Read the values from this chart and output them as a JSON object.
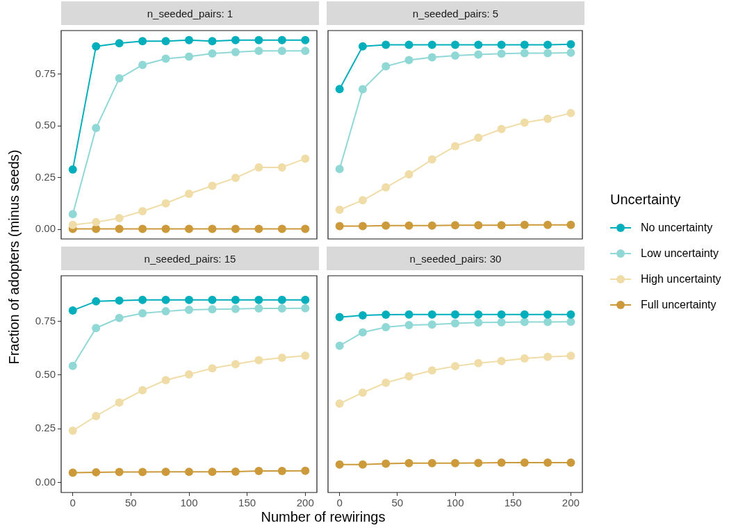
{
  "chart_data": [
    {
      "type": "line",
      "title": "n_seeded_pairs: 1",
      "ylabel": "Fraction of adopters (minus seeds)",
      "legend_title": "Uncertainty",
      "legend": "right",
      "marker": "circle",
      "tick_labels": "y",
      "x": [
        0,
        20,
        40,
        60,
        80,
        100,
        120,
        140,
        160,
        180,
        200
      ],
      "xlim": [
        -10,
        210
      ],
      "ylim": [
        -0.046,
        0.961
      ],
      "yticks": [
        {
          "value": 0,
          "label": "0.00"
        },
        {
          "value": 0.25,
          "label": "0.25"
        },
        {
          "value": 0.5,
          "label": "0.50"
        },
        {
          "value": 0.75,
          "label": "0.75"
        }
      ],
      "series": [
        {
          "name": "No uncertainty",
          "color": "#00afbb",
          "values": [
            0.29,
            0.885,
            0.9,
            0.91,
            0.91,
            0.915,
            0.91,
            0.915,
            0.915,
            0.915,
            0.915
          ]
        },
        {
          "name": "Low uncertainty",
          "color": "#8fd8d6",
          "values": [
            0.074,
            0.49,
            0.73,
            0.795,
            0.825,
            0.835,
            0.85,
            0.857,
            0.863,
            0.863,
            0.863
          ]
        },
        {
          "name": "High uncertainty",
          "color": "#f0dca6",
          "values": [
            0.022,
            0.035,
            0.055,
            0.088,
            0.126,
            0.172,
            0.211,
            0.249,
            0.3,
            0.3,
            0.342
          ]
        },
        {
          "name": "Full uncertainty",
          "color": "#cc9a3a",
          "values": [
            0.003,
            0.003,
            0.003,
            0.003,
            0.003,
            0.003,
            0.003,
            0.003,
            0.003,
            0.003,
            0.003
          ]
        }
      ]
    },
    {
      "type": "line",
      "title": "n_seeded_pairs: 5",
      "marker": "circle",
      "tick_labels": false,
      "x": [
        0,
        20,
        40,
        60,
        80,
        100,
        120,
        140,
        160,
        180,
        200
      ],
      "xlim": [
        -10,
        210
      ],
      "ylim": [
        -0.046,
        0.961
      ],
      "series": [
        {
          "color": "#00afbb",
          "values": [
            0.678,
            0.885,
            0.892,
            0.892,
            0.892,
            0.892,
            0.892,
            0.892,
            0.892,
            0.892,
            0.895
          ]
        },
        {
          "color": "#8fd8d6",
          "values": [
            0.292,
            0.677,
            0.788,
            0.818,
            0.832,
            0.84,
            0.845,
            0.849,
            0.852,
            0.852,
            0.854
          ]
        },
        {
          "color": "#f0dca6",
          "values": [
            0.095,
            0.141,
            0.203,
            0.266,
            0.338,
            0.402,
            0.443,
            0.485,
            0.516,
            0.535,
            0.562
          ]
        },
        {
          "color": "#cc9a3a",
          "values": [
            0.016,
            0.016,
            0.019,
            0.019,
            0.019,
            0.02,
            0.02,
            0.02,
            0.022,
            0.022,
            0.022
          ]
        }
      ]
    },
    {
      "type": "line",
      "title": "n_seeded_pairs: 15",
      "xlabel": "Number of rewirings",
      "marker": "circle",
      "x": [
        0,
        20,
        40,
        60,
        80,
        100,
        120,
        140,
        160,
        180,
        200
      ],
      "xlim": [
        -10,
        210
      ],
      "xticks": [
        0,
        50,
        100,
        150,
        200
      ],
      "ylim": [
        -0.046,
        0.961
      ],
      "yticks": [
        {
          "value": 0,
          "label": "0.00"
        },
        {
          "value": 0.25,
          "label": "0.25"
        },
        {
          "value": 0.5,
          "label": "0.50"
        },
        {
          "value": 0.75,
          "label": "0.75"
        }
      ],
      "series": [
        {
          "color": "#00afbb",
          "values": [
            0.8,
            0.842,
            0.846,
            0.849,
            0.849,
            0.849,
            0.849,
            0.849,
            0.849,
            0.849,
            0.849
          ]
        },
        {
          "color": "#8fd8d6",
          "values": [
            0.542,
            0.718,
            0.765,
            0.787,
            0.796,
            0.803,
            0.805,
            0.807,
            0.809,
            0.809,
            0.81
          ]
        },
        {
          "color": "#f0dca6",
          "values": [
            0.241,
            0.309,
            0.372,
            0.429,
            0.476,
            0.503,
            0.531,
            0.55,
            0.569,
            0.58,
            0.59
          ]
        },
        {
          "color": "#cc9a3a",
          "values": [
            0.046,
            0.048,
            0.049,
            0.049,
            0.05,
            0.05,
            0.05,
            0.051,
            0.054,
            0.054,
            0.055
          ]
        }
      ]
    },
    {
      "type": "line",
      "title": "n_seeded_pairs: 30",
      "marker": "circle",
      "tick_labels": "x",
      "x": [
        0,
        20,
        40,
        60,
        80,
        100,
        120,
        140,
        160,
        180,
        200
      ],
      "xlim": [
        -10,
        210
      ],
      "xticks": [
        0,
        50,
        100,
        150,
        200
      ],
      "ylim": [
        -0.046,
        0.961
      ],
      "series": [
        {
          "color": "#00afbb",
          "values": [
            0.769,
            0.777,
            0.78,
            0.781,
            0.781,
            0.781,
            0.781,
            0.781,
            0.781,
            0.781,
            0.781
          ]
        },
        {
          "color": "#8fd8d6",
          "values": [
            0.636,
            0.698,
            0.722,
            0.732,
            0.734,
            0.74,
            0.744,
            0.745,
            0.746,
            0.746,
            0.747
          ]
        },
        {
          "color": "#f0dca6",
          "values": [
            0.367,
            0.418,
            0.464,
            0.494,
            0.521,
            0.541,
            0.555,
            0.565,
            0.577,
            0.584,
            0.589
          ]
        },
        {
          "color": "#cc9a3a",
          "values": [
            0.084,
            0.084,
            0.088,
            0.09,
            0.09,
            0.09,
            0.091,
            0.093,
            0.093,
            0.093,
            0.093
          ]
        }
      ]
    }
  ]
}
